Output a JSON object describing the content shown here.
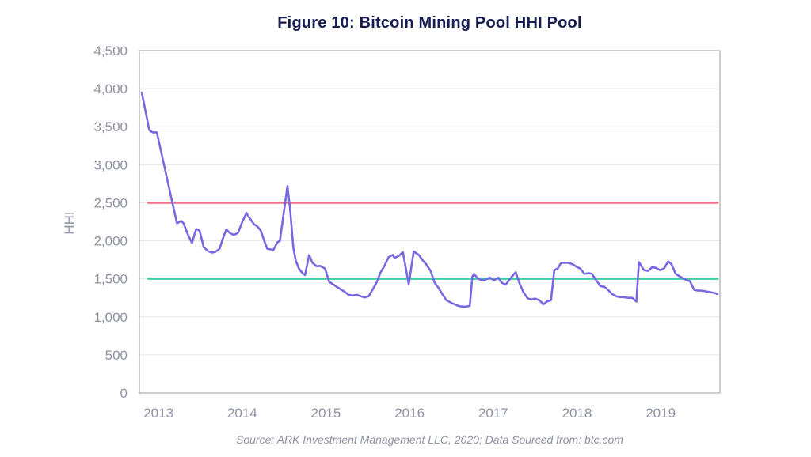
{
  "figure": {
    "title": "Figure 10: Bitcoin Mining Pool HHI Pool",
    "source": "Source: ARK Investment Management LLC, 2020; Data Sourced from: btc.com"
  },
  "chart_data": {
    "type": "line",
    "title": "Figure 10: Bitcoin Mining Pool HHI Pool",
    "xlabel": "",
    "ylabel": "HHI",
    "ylim": [
      0,
      4500
    ],
    "xlim": [
      2012.8,
      2019.68
    ],
    "grid": "horizontal-only",
    "legend_position": "none",
    "yticks": {
      "values": [
        0,
        500,
        1000,
        1500,
        2000,
        2500,
        3000,
        3500,
        4000,
        4500
      ],
      "labels": [
        "0",
        "500",
        "1,000",
        "1,500",
        "2,000",
        "2,500",
        "3,000",
        "3,500",
        "4,000",
        "4,500"
      ]
    },
    "xticks": {
      "values": [
        2013,
        2014,
        2015,
        2016,
        2017,
        2018,
        2019
      ],
      "labels": [
        "2013",
        "2014",
        "2015",
        "2016",
        "2017",
        "2018",
        "2019"
      ]
    },
    "reference_lines": [
      {
        "name": "upper-threshold",
        "value": 2500,
        "color": "#F0708C"
      },
      {
        "name": "lower-threshold",
        "value": 1500,
        "color": "#3BCEA4"
      }
    ],
    "colors": {
      "line": "#7669E1",
      "grid": "#E6E6E6",
      "border": "#ADADAD",
      "tick_text": "#8D92A3",
      "title_text": "#161C4F",
      "source_text": "#8D92A3"
    },
    "series": [
      {
        "name": "Bitcoin Mining Pool HHI",
        "color": "#7669E1",
        "points": [
          [
            2012.8,
            3950
          ],
          [
            2012.89,
            3455
          ],
          [
            2012.93,
            3425
          ],
          [
            2012.98,
            3425
          ],
          [
            2013.22,
            2230
          ],
          [
            2013.27,
            2260
          ],
          [
            2013.3,
            2230
          ],
          [
            2013.35,
            2085
          ],
          [
            2013.4,
            1970
          ],
          [
            2013.45,
            2155
          ],
          [
            2013.49,
            2135
          ],
          [
            2013.54,
            1915
          ],
          [
            2013.59,
            1865
          ],
          [
            2013.64,
            1845
          ],
          [
            2013.68,
            1855
          ],
          [
            2013.73,
            1895
          ],
          [
            2013.76,
            2000
          ],
          [
            2013.81,
            2150
          ],
          [
            2013.85,
            2105
          ],
          [
            2013.9,
            2075
          ],
          [
            2013.95,
            2105
          ],
          [
            2014.0,
            2245
          ],
          [
            2014.05,
            2365
          ],
          [
            2014.09,
            2295
          ],
          [
            2014.14,
            2220
          ],
          [
            2014.18,
            2190
          ],
          [
            2014.22,
            2140
          ],
          [
            2014.27,
            1980
          ],
          [
            2014.3,
            1895
          ],
          [
            2014.35,
            1885
          ],
          [
            2014.37,
            1875
          ],
          [
            2014.42,
            1980
          ],
          [
            2014.45,
            2000
          ],
          [
            2014.54,
            2720
          ],
          [
            2014.57,
            2450
          ],
          [
            2014.61,
            1915
          ],
          [
            2014.64,
            1740
          ],
          [
            2014.68,
            1630
          ],
          [
            2014.72,
            1575
          ],
          [
            2014.75,
            1550
          ],
          [
            2014.8,
            1810
          ],
          [
            2014.84,
            1710
          ],
          [
            2014.89,
            1665
          ],
          [
            2014.93,
            1670
          ],
          [
            2014.99,
            1635
          ],
          [
            2015.04,
            1460
          ],
          [
            2015.09,
            1425
          ],
          [
            2015.13,
            1395
          ],
          [
            2015.18,
            1360
          ],
          [
            2015.23,
            1325
          ],
          [
            2015.27,
            1290
          ],
          [
            2015.32,
            1280
          ],
          [
            2015.37,
            1290
          ],
          [
            2015.42,
            1270
          ],
          [
            2015.46,
            1255
          ],
          [
            2015.51,
            1270
          ],
          [
            2015.56,
            1360
          ],
          [
            2015.61,
            1460
          ],
          [
            2015.65,
            1580
          ],
          [
            2015.7,
            1670
          ],
          [
            2015.75,
            1785
          ],
          [
            2015.8,
            1815
          ],
          [
            2015.82,
            1775
          ],
          [
            2015.87,
            1800
          ],
          [
            2015.92,
            1850
          ],
          [
            2015.99,
            1430
          ],
          [
            2016.05,
            1860
          ],
          [
            2016.11,
            1815
          ],
          [
            2016.16,
            1740
          ],
          [
            2016.2,
            1690
          ],
          [
            2016.25,
            1605
          ],
          [
            2016.3,
            1450
          ],
          [
            2016.35,
            1375
          ],
          [
            2016.39,
            1300
          ],
          [
            2016.44,
            1220
          ],
          [
            2016.49,
            1190
          ],
          [
            2016.54,
            1165
          ],
          [
            2016.58,
            1145
          ],
          [
            2016.63,
            1135
          ],
          [
            2016.68,
            1135
          ],
          [
            2016.72,
            1145
          ],
          [
            2016.75,
            1530
          ],
          [
            2016.77,
            1565
          ],
          [
            2016.82,
            1500
          ],
          [
            2016.87,
            1480
          ],
          [
            2016.91,
            1490
          ],
          [
            2016.96,
            1515
          ],
          [
            2017.01,
            1480
          ],
          [
            2017.06,
            1515
          ],
          [
            2017.1,
            1450
          ],
          [
            2017.15,
            1425
          ],
          [
            2017.2,
            1500
          ],
          [
            2017.25,
            1565
          ],
          [
            2017.27,
            1585
          ],
          [
            2017.31,
            1450
          ],
          [
            2017.36,
            1325
          ],
          [
            2017.41,
            1245
          ],
          [
            2017.45,
            1230
          ],
          [
            2017.5,
            1240
          ],
          [
            2017.55,
            1220
          ],
          [
            2017.6,
            1165
          ],
          [
            2017.64,
            1200
          ],
          [
            2017.69,
            1220
          ],
          [
            2017.73,
            1615
          ],
          [
            2017.77,
            1635
          ],
          [
            2017.81,
            1710
          ],
          [
            2017.85,
            1710
          ],
          [
            2017.9,
            1710
          ],
          [
            2017.95,
            1690
          ],
          [
            2018.0,
            1655
          ],
          [
            2018.04,
            1635
          ],
          [
            2018.09,
            1565
          ],
          [
            2018.14,
            1575
          ],
          [
            2018.18,
            1565
          ],
          [
            2018.23,
            1480
          ],
          [
            2018.28,
            1405
          ],
          [
            2018.33,
            1395
          ],
          [
            2018.37,
            1355
          ],
          [
            2018.42,
            1300
          ],
          [
            2018.47,
            1270
          ],
          [
            2018.52,
            1260
          ],
          [
            2018.56,
            1260
          ],
          [
            2018.61,
            1250
          ],
          [
            2018.66,
            1250
          ],
          [
            2018.71,
            1200
          ],
          [
            2018.74,
            1720
          ],
          [
            2018.8,
            1615
          ],
          [
            2018.85,
            1605
          ],
          [
            2018.9,
            1655
          ],
          [
            2018.94,
            1645
          ],
          [
            2018.99,
            1615
          ],
          [
            2019.04,
            1635
          ],
          [
            2019.09,
            1730
          ],
          [
            2019.13,
            1690
          ],
          [
            2019.18,
            1565
          ],
          [
            2019.23,
            1530
          ],
          [
            2019.28,
            1500
          ],
          [
            2019.32,
            1480
          ],
          [
            2019.35,
            1470
          ],
          [
            2019.4,
            1355
          ],
          [
            2019.45,
            1345
          ],
          [
            2019.49,
            1345
          ],
          [
            2019.54,
            1335
          ],
          [
            2019.59,
            1325
          ],
          [
            2019.64,
            1315
          ],
          [
            2019.68,
            1300
          ]
        ]
      }
    ]
  }
}
